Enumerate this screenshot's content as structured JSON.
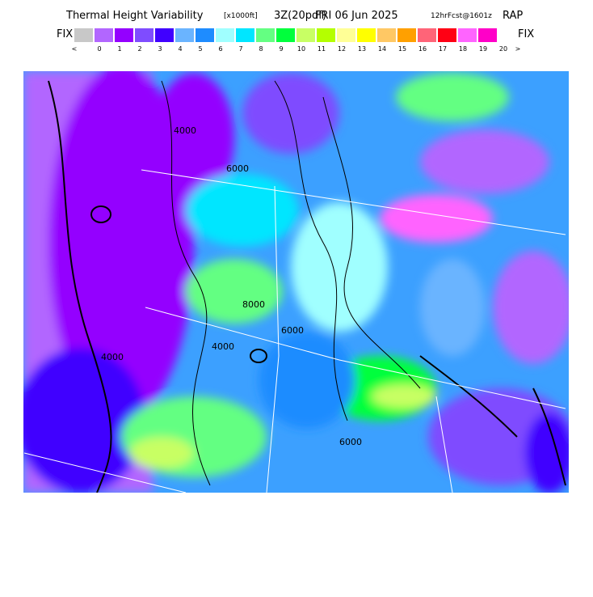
{
  "header": {
    "title": "Thermal Height Variability",
    "units": "[x1000ft]",
    "run": "3Z(20pdf)",
    "date": "FRI 06 Jun 2025",
    "forecast": "12hrFcst@1601z",
    "model": "RAP"
  },
  "legend": {
    "left_label": "FIX",
    "right_label": "FIX",
    "colors": [
      "#c8c8c8",
      "#b266ff",
      "#9400ff",
      "#7f4cff",
      "#4000ff",
      "#6ab4ff",
      "#1e8cff",
      "#a0ffff",
      "#00e6ff",
      "#64ff82",
      "#00ff3c",
      "#c8ff64",
      "#b4ff00",
      "#ffff96",
      "#ffff00",
      "#ffc864",
      "#ffa000",
      "#ff6478",
      "#ff0014",
      "#ff64ff",
      "#ff00c8"
    ],
    "labels": [
      "<",
      "0",
      "1",
      "2",
      "3",
      "4",
      "5",
      "6",
      "7",
      "8",
      "9",
      "10",
      "11",
      "12",
      "13",
      "14",
      "15",
      "16",
      "17",
      "18",
      "19",
      "20",
      ">"
    ]
  },
  "map": {
    "contour_labels": [
      "4000",
      "4000",
      "6000",
      "6000",
      "8000",
      "4000",
      "6000"
    ]
  }
}
